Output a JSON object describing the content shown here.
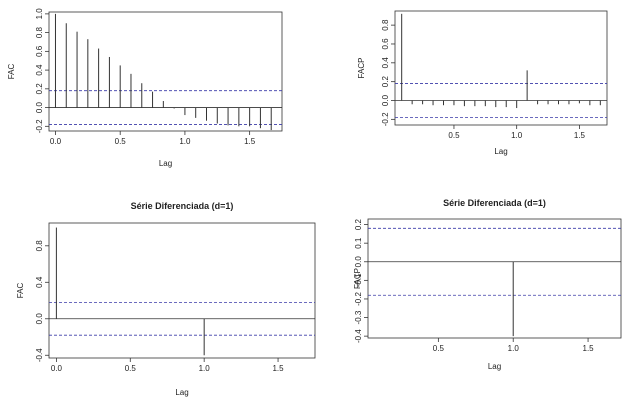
{
  "colors": {
    "bar": "#333333",
    "frame": "#333333",
    "ci": "#3a3aa8",
    "zero": "#333333"
  },
  "chart_data": [
    {
      "type": "bar",
      "title": "",
      "xlabel": "Lag",
      "ylabel": "FAC",
      "xlim": [
        -0.05,
        1.75
      ],
      "ylim": [
        -0.25,
        1.02
      ],
      "xticks": [
        0.0,
        0.5,
        1.0,
        1.5
      ],
      "xtick_labels": [
        "0.0",
        "0.5",
        "1.0",
        "1.5"
      ],
      "yticks": [
        -0.2,
        0.0,
        0.2,
        0.4,
        0.6,
        0.8,
        1.0
      ],
      "ytick_labels": [
        "-0.2",
        "0.0",
        "0.2",
        "0.4",
        "0.6",
        "0.8",
        "1.0"
      ],
      "ci": 0.18,
      "x": [
        0.0,
        0.0833,
        0.1667,
        0.25,
        0.3333,
        0.4167,
        0.5,
        0.5833,
        0.6667,
        0.75,
        0.8333,
        0.9167,
        1.0,
        1.0833,
        1.1667,
        1.25,
        1.3333,
        1.4167,
        1.5,
        1.5833,
        1.6667
      ],
      "values": [
        1.0,
        0.9,
        0.81,
        0.73,
        0.63,
        0.54,
        0.45,
        0.36,
        0.26,
        0.17,
        0.07,
        -0.01,
        -0.08,
        -0.11,
        -0.14,
        -0.17,
        -0.19,
        -0.2,
        -0.2,
        -0.22,
        -0.24
      ]
    },
    {
      "type": "bar",
      "title": "",
      "xlabel": "Lag",
      "ylabel": "FACP",
      "xlim": [
        0.03,
        1.72
      ],
      "ylim": [
        -0.26,
        0.95
      ],
      "xticks": [
        0.5,
        1.0,
        1.5
      ],
      "xtick_labels": [
        "0.5",
        "1.0",
        "1.5"
      ],
      "yticks": [
        -0.2,
        0.0,
        0.2,
        0.4,
        0.6,
        0.8
      ],
      "ytick_labels": [
        "-0.2",
        "0.0",
        "0.2",
        "0.4",
        "0.6",
        "0.8"
      ],
      "ci": 0.18,
      "x": [
        0.0833,
        0.1667,
        0.25,
        0.3333,
        0.4167,
        0.5,
        0.5833,
        0.6667,
        0.75,
        0.8333,
        0.9167,
        1.0,
        1.0833,
        1.1667,
        1.25,
        1.3333,
        1.4167,
        1.5,
        1.5833,
        1.6667
      ],
      "values": [
        0.92,
        -0.04,
        -0.04,
        -0.05,
        -0.05,
        -0.05,
        -0.06,
        -0.06,
        -0.06,
        -0.07,
        -0.07,
        -0.08,
        0.32,
        -0.04,
        -0.04,
        -0.04,
        -0.04,
        -0.03,
        -0.05,
        -0.05
      ]
    },
    {
      "type": "bar",
      "title": "Série Diferenciada (d=1)",
      "xlabel": "Lag",
      "ylabel": "FAC",
      "xlim": [
        -0.05,
        1.75
      ],
      "ylim": [
        -0.43,
        1.05
      ],
      "xticks": [
        0.0,
        0.5,
        1.0,
        1.5
      ],
      "xtick_labels": [
        "0.0",
        "0.5",
        "1.0",
        "1.5"
      ],
      "yticks": [
        -0.4,
        0.0,
        0.4,
        0.8
      ],
      "ytick_labels": [
        "-0.4",
        "0.0",
        "0.4",
        "0.8"
      ],
      "ci": 0.18,
      "x": [
        0.0,
        0.0833,
        0.1667,
        0.25,
        0.3333,
        0.4167,
        0.5,
        0.5833,
        0.6667,
        0.75,
        0.8333,
        0.9167,
        1.0,
        1.0833,
        1.1667,
        1.25,
        1.3333,
        1.4167,
        1.5,
        1.5833,
        1.6667
      ],
      "values": [
        1.0,
        0.0,
        0.0,
        0.0,
        0.0,
        0.0,
        0.0,
        0.0,
        0.0,
        0.0,
        0.0,
        0.0,
        -0.4,
        0.0,
        0.0,
        0.0,
        0.0,
        0.0,
        0.0,
        0.0,
        0.0
      ]
    },
    {
      "type": "bar",
      "title": "Série Diferenciada (d=1)",
      "xlabel": "Lag",
      "ylabel": "FACP",
      "xlim": [
        0.03,
        1.72
      ],
      "ylim": [
        -0.41,
        0.23
      ],
      "xticks": [
        0.5,
        1.0,
        1.5
      ],
      "xtick_labels": [
        "0.5",
        "1.0",
        "1.5"
      ],
      "yticks": [
        -0.4,
        -0.3,
        -0.2,
        -0.1,
        0.0,
        0.1,
        0.2
      ],
      "ytick_labels": [
        "-0.4",
        "-0.3",
        "-0.2",
        "-0.1",
        "0.0",
        "0.1",
        "0.2"
      ],
      "ci": 0.18,
      "x": [
        0.0833,
        0.1667,
        0.25,
        0.3333,
        0.4167,
        0.5,
        0.5833,
        0.6667,
        0.75,
        0.8333,
        0.9167,
        1.0,
        1.0833,
        1.1667,
        1.25,
        1.3333,
        1.4167,
        1.5,
        1.5833,
        1.6667
      ],
      "values": [
        0.0,
        0.0,
        0.0,
        0.0,
        0.0,
        0.0,
        0.0,
        0.0,
        0.0,
        0.0,
        0.0,
        -0.4,
        0.0,
        0.0,
        0.0,
        0.0,
        0.0,
        0.0,
        0.0,
        0.0
      ]
    }
  ]
}
